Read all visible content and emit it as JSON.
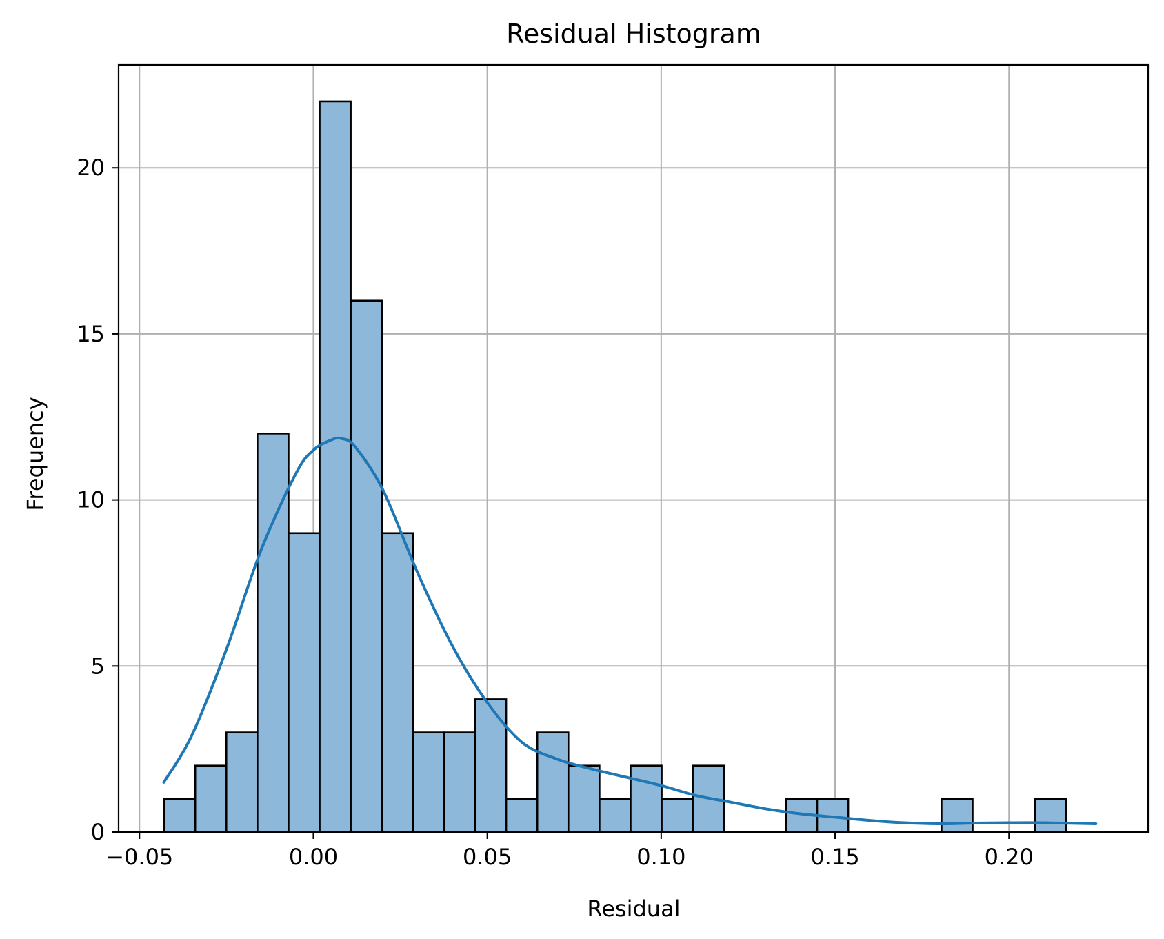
{
  "chart_data": {
    "type": "bar",
    "title": "Residual Histogram",
    "xlabel": "Residual",
    "ylabel": "Frequency",
    "xlim": [
      -0.056,
      0.24
    ],
    "ylim": [
      0,
      23.1
    ],
    "grid": true,
    "x_ticks": [
      {
        "value": -0.05,
        "label": "−0.05"
      },
      {
        "value": 0.0,
        "label": "0.00"
      },
      {
        "value": 0.05,
        "label": "0.05"
      },
      {
        "value": 0.1,
        "label": "0.10"
      },
      {
        "value": 0.15,
        "label": "0.15"
      },
      {
        "value": 0.2,
        "label": "0.20"
      }
    ],
    "y_ticks": [
      {
        "value": 0,
        "label": "0"
      },
      {
        "value": 5,
        "label": "5"
      },
      {
        "value": 10,
        "label": "10"
      },
      {
        "value": 15,
        "label": "15"
      },
      {
        "value": 20,
        "label": "20"
      }
    ],
    "bin_start": -0.0429,
    "bin_width": 0.00894,
    "counts": [
      1,
      2,
      3,
      12,
      9,
      22,
      16,
      9,
      3,
      3,
      4,
      1,
      3,
      2,
      1,
      2,
      1,
      2,
      0,
      0,
      1,
      1,
      0,
      0,
      0,
      1,
      0,
      0,
      1
    ],
    "kde": {
      "x": [
        -0.043,
        -0.035,
        -0.025,
        -0.015,
        -0.005,
        0.0,
        0.005,
        0.008,
        0.012,
        0.02,
        0.03,
        0.04,
        0.05,
        0.06,
        0.07,
        0.08,
        0.09,
        0.1,
        0.11,
        0.12,
        0.13,
        0.14,
        0.15,
        0.16,
        0.17,
        0.18,
        0.19,
        0.2,
        0.21,
        0.225
      ],
      "y": [
        1.5,
        2.9,
        5.5,
        8.5,
        10.8,
        11.5,
        11.8,
        11.85,
        11.6,
        10.3,
        7.8,
        5.6,
        3.9,
        2.7,
        2.2,
        1.9,
        1.65,
        1.4,
        1.1,
        0.9,
        0.7,
        0.55,
        0.45,
        0.35,
        0.28,
        0.25,
        0.27,
        0.28,
        0.28,
        0.25
      ]
    },
    "colors": {
      "bar_fill": "#8db8da",
      "bar_edge": "#000000",
      "kde_line": "#1f77b4",
      "grid": "#b0b0b0"
    }
  }
}
